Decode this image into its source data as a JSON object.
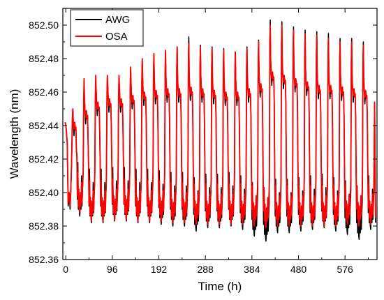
{
  "chart_data": {
    "type": "line",
    "xlabel": "Time (h)",
    "ylabel": "Wavelength (nm)",
    "xlim": [
      -6,
      642
    ],
    "ylim": [
      852.36,
      852.51
    ],
    "xticks": [
      0,
      96,
      192,
      288,
      384,
      480,
      576
    ],
    "xtick_labels": [
      "0",
      "96",
      "192",
      "288",
      "384",
      "480",
      "576"
    ],
    "yticks": [
      852.36,
      852.38,
      852.4,
      852.42,
      852.44,
      852.46,
      852.48,
      852.5
    ],
    "ytick_labels": [
      "852.36",
      "852.38",
      "852.40",
      "852.42",
      "852.44",
      "852.46",
      "852.48",
      "852.50"
    ],
    "legend_position": "top-left",
    "grid": false,
    "cycle_period_h": 24,
    "cycle_start_h": 12,
    "cycle_peaks": {
      "x": [
        12,
        36,
        60,
        84,
        108,
        132,
        156,
        180,
        204,
        228,
        252,
        276,
        300,
        324,
        348,
        372,
        396,
        420,
        444,
        468,
        492,
        516,
        540,
        564,
        588,
        612
      ],
      "OSA_peak": [
        852.446,
        852.468,
        852.47,
        852.47,
        852.47,
        852.475,
        852.48,
        852.483,
        852.485,
        852.487,
        852.489,
        852.487,
        852.486,
        852.485,
        852.484,
        852.486,
        852.49,
        852.5,
        852.5,
        852.497,
        852.495,
        852.494,
        852.492,
        852.49,
        852.49,
        852.488
      ],
      "AWG_peak": [
        852.444,
        852.463,
        852.465,
        852.466,
        852.468,
        852.474,
        852.479,
        852.482,
        852.484,
        852.487,
        852.493,
        852.488,
        852.487,
        852.486,
        852.484,
        852.487,
        852.491,
        852.503,
        852.502,
        852.499,
        852.497,
        852.496,
        852.495,
        852.492,
        852.492,
        852.49
      ],
      "plateau": [
        852.44,
        852.447,
        852.452,
        852.454,
        852.454,
        852.456,
        852.458,
        852.459,
        852.46,
        852.46,
        852.461,
        852.46,
        852.459,
        852.458,
        852.458,
        852.46,
        852.463,
        852.47,
        852.468,
        852.466,
        852.464,
        852.462,
        852.462,
        852.461,
        852.46,
        852.459
      ],
      "OSA_min": [
        852.388,
        852.383,
        852.383,
        852.384,
        852.384,
        852.383,
        852.383,
        852.383,
        852.382,
        852.382,
        852.381,
        852.381,
        852.381,
        852.381,
        852.381,
        852.38,
        852.379,
        852.38,
        852.38,
        852.38,
        852.38,
        852.38,
        852.38,
        852.381,
        852.38,
        852.381
      ],
      "AWG_min": [
        852.386,
        852.382,
        852.382,
        852.383,
        852.383,
        852.382,
        852.382,
        852.381,
        852.38,
        852.38,
        852.377,
        852.379,
        852.379,
        852.38,
        852.378,
        852.374,
        852.371,
        852.376,
        852.376,
        852.377,
        852.378,
        852.379,
        852.377,
        852.375,
        852.372,
        852.378
      ]
    },
    "series": [
      {
        "name": "AWG",
        "color": "#000000"
      },
      {
        "name": "OSA",
        "color": "#ff0000"
      }
    ]
  }
}
